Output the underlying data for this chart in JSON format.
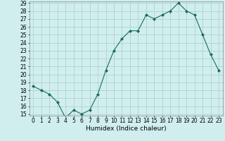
{
  "x": [
    0,
    1,
    2,
    3,
    4,
    5,
    6,
    7,
    8,
    9,
    10,
    11,
    12,
    13,
    14,
    15,
    16,
    17,
    18,
    19,
    20,
    21,
    22,
    23
  ],
  "y": [
    18.5,
    18.0,
    17.5,
    16.5,
    14.5,
    15.5,
    15.0,
    15.5,
    17.5,
    20.5,
    23.0,
    24.5,
    25.5,
    25.5,
    27.5,
    27.0,
    27.5,
    28.0,
    29.0,
    28.0,
    27.5,
    25.0,
    22.5,
    20.5
  ],
  "line_color": "#1a6b5a",
  "marker_color": "#1a6b5a",
  "bg_color": "#d0eeee",
  "grid_color": "#aacccc",
  "xlabel": "Humidex (Indice chaleur)",
  "ylim_min": 15,
  "ylim_max": 29,
  "xlim_min": -0.5,
  "xlim_max": 23.5,
  "yticks": [
    15,
    16,
    17,
    18,
    19,
    20,
    21,
    22,
    23,
    24,
    25,
    26,
    27,
    28,
    29
  ],
  "xticks": [
    0,
    1,
    2,
    3,
    4,
    5,
    6,
    7,
    8,
    9,
    10,
    11,
    12,
    13,
    14,
    15,
    16,
    17,
    18,
    19,
    20,
    21,
    22,
    23
  ],
  "xlabel_fontsize": 6.5,
  "tick_fontsize": 5.5
}
